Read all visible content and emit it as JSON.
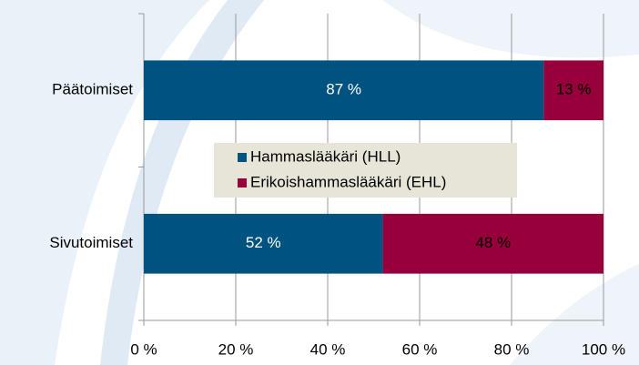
{
  "chart_data": {
    "type": "stacked_bar_horizontal",
    "categories": [
      "Päätoimiset",
      "Sivutoimiset"
    ],
    "series": [
      {
        "name": "Hammaslääkäri (HLL)",
        "color": "#005381",
        "label_color": "#ffffff",
        "values": [
          87,
          52
        ],
        "value_labels": [
          "87 %",
          "52 %"
        ]
      },
      {
        "name": "Erikoishammaslääkäri (EHL)",
        "color": "#97003a",
        "label_color": "#000000",
        "values": [
          13,
          48
        ],
        "value_labels": [
          "13 %",
          "48 %"
        ]
      }
    ],
    "xlim": [
      0,
      100
    ],
    "xticks": [
      {
        "value": 0,
        "label": "0 %"
      },
      {
        "value": 20,
        "label": "20 %"
      },
      {
        "value": 40,
        "label": "40 %"
      },
      {
        "value": 60,
        "label": "60 %"
      },
      {
        "value": 80,
        "label": "80 %"
      },
      {
        "value": 100,
        "label": "100 %"
      }
    ],
    "grid": true,
    "legend": "center"
  }
}
